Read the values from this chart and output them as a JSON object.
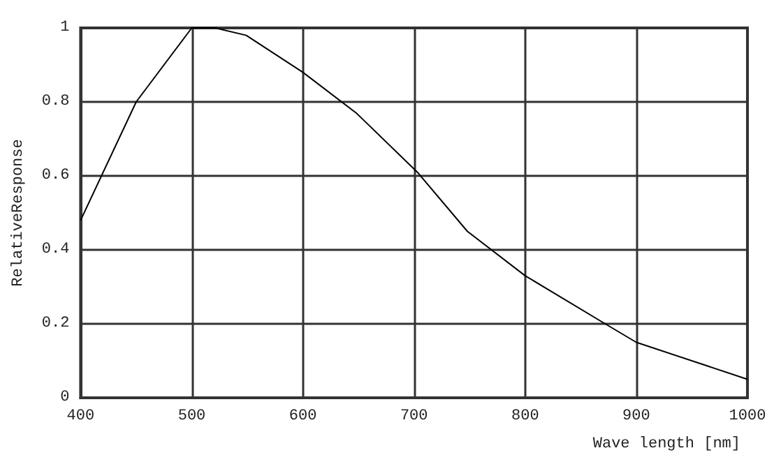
{
  "chart_data": {
    "type": "line",
    "xlabel": "Wave length [nm]",
    "ylabel": "RelativeResponse",
    "x": [
      400,
      450,
      500,
      521,
      549,
      600,
      648,
      703,
      748,
      800,
      872,
      900,
      1000
    ],
    "series": [
      {
        "color": "#000000",
        "values": [
          0.48,
          0.8,
          1.0,
          1.0,
          0.98,
          0.88,
          0.77,
          0.61,
          0.45,
          0.33,
          0.2,
          0.15,
          0.05
        ]
      }
    ],
    "xlim": [
      400,
      1000
    ],
    "xticks": [
      400,
      500,
      600,
      700,
      800,
      900,
      1000
    ],
    "ylim": [
      0,
      1
    ],
    "yticks": [
      0,
      0.2,
      0.4,
      0.6,
      0.8,
      1
    ],
    "grid": true,
    "marker": "none",
    "line_style": "solid"
  }
}
